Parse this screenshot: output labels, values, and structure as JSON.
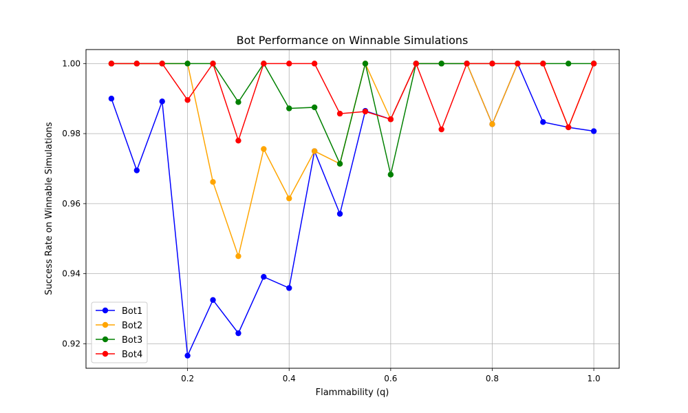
{
  "chart_data": {
    "type": "line",
    "title": "Bot Performance on Winnable Simulations",
    "xlabel": "Flammability (q)",
    "ylabel": "Success Rate on Winnable Simulations",
    "xlim": [
      0.0,
      1.05
    ],
    "ylim": [
      0.913,
      1.004
    ],
    "xticks": [
      0.2,
      0.4,
      0.6,
      0.8,
      1.0
    ],
    "xtick_labels": [
      "0.2",
      "0.4",
      "0.6",
      "0.8",
      "1.0"
    ],
    "yticks": [
      0.92,
      0.94,
      0.96,
      0.98,
      1.0
    ],
    "ytick_labels": [
      "0.92",
      "0.94",
      "0.96",
      "0.98",
      "1.00"
    ],
    "grid": true,
    "legend_position": "lower-left",
    "x": [
      0.05,
      0.1,
      0.15,
      0.2,
      0.25,
      0.3,
      0.35,
      0.4,
      0.45,
      0.5,
      0.55,
      0.6,
      0.65,
      0.7,
      0.75,
      0.8,
      0.85,
      0.9,
      0.95,
      1.0
    ],
    "series": [
      {
        "name": "Bot1",
        "color": "#0000ff",
        "values": [
          0.99,
          0.9695,
          0.9892,
          0.9166,
          0.9325,
          0.923,
          0.9391,
          0.9359,
          0.975,
          0.9571,
          0.9865,
          0.9841,
          1.0,
          1.0,
          1.0,
          0.9827,
          1.0,
          0.9833,
          0.9818,
          0.9807
        ]
      },
      {
        "name": "Bot2",
        "color": "#ffa500",
        "values": [
          1.0,
          1.0,
          1.0,
          1.0,
          0.9662,
          0.945,
          0.9756,
          0.9615,
          0.975,
          0.9714,
          1.0,
          0.9841,
          1.0,
          1.0,
          1.0,
          0.9827,
          1.0,
          1.0,
          0.9818,
          1.0
        ]
      },
      {
        "name": "Bot3",
        "color": "#008000",
        "values": [
          1.0,
          1.0,
          1.0,
          1.0,
          1.0,
          0.989,
          1.0,
          0.9872,
          0.9875,
          0.9714,
          1.0,
          0.9683,
          1.0,
          1.0,
          1.0,
          1.0,
          1.0,
          1.0,
          1.0,
          1.0
        ]
      },
      {
        "name": "Bot4",
        "color": "#ff0000",
        "values": [
          1.0,
          1.0,
          1.0,
          0.9896,
          1.0,
          0.978,
          1.0,
          1.0,
          1.0,
          0.9857,
          0.9863,
          0.9841,
          1.0,
          0.9812,
          1.0,
          1.0,
          1.0,
          1.0,
          0.9818,
          1.0
        ]
      }
    ]
  }
}
